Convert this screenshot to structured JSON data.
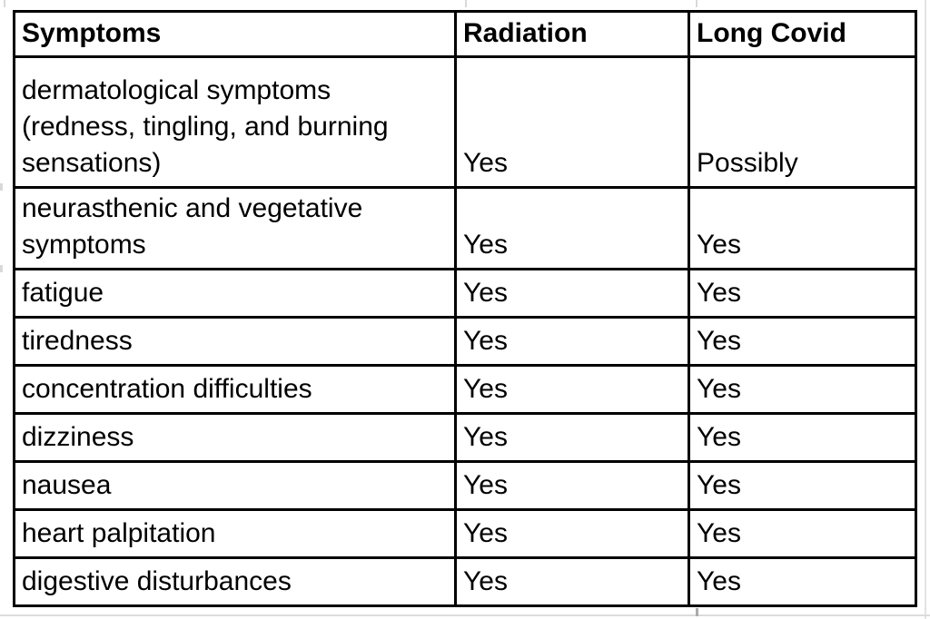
{
  "table": {
    "headers": [
      "Symptoms",
      "Radiation",
      "Long Covid"
    ],
    "rows": [
      [
        "dermatological symptoms\n(redness, tingling, and burning\nsensations)",
        "Yes",
        "Possibly"
      ],
      [
        "neurasthenic and vegetative\nsymptoms",
        "Yes",
        "Yes"
      ],
      [
        "fatigue",
        "Yes",
        "Yes"
      ],
      [
        "tiredness",
        "Yes",
        "Yes"
      ],
      [
        "concentration difficulties",
        "Yes",
        "Yes"
      ],
      [
        "dizziness",
        "Yes",
        "Yes"
      ],
      [
        "nausea",
        "Yes",
        "Yes"
      ],
      [
        "heart palpitation",
        "Yes",
        "Yes"
      ],
      [
        "digestive disturbances",
        "Yes",
        "Yes"
      ]
    ]
  },
  "colors": {
    "border": "#000000",
    "text": "#000000",
    "background": "#ffffff",
    "spreadsheet_gridline": "#d9d9d9"
  }
}
